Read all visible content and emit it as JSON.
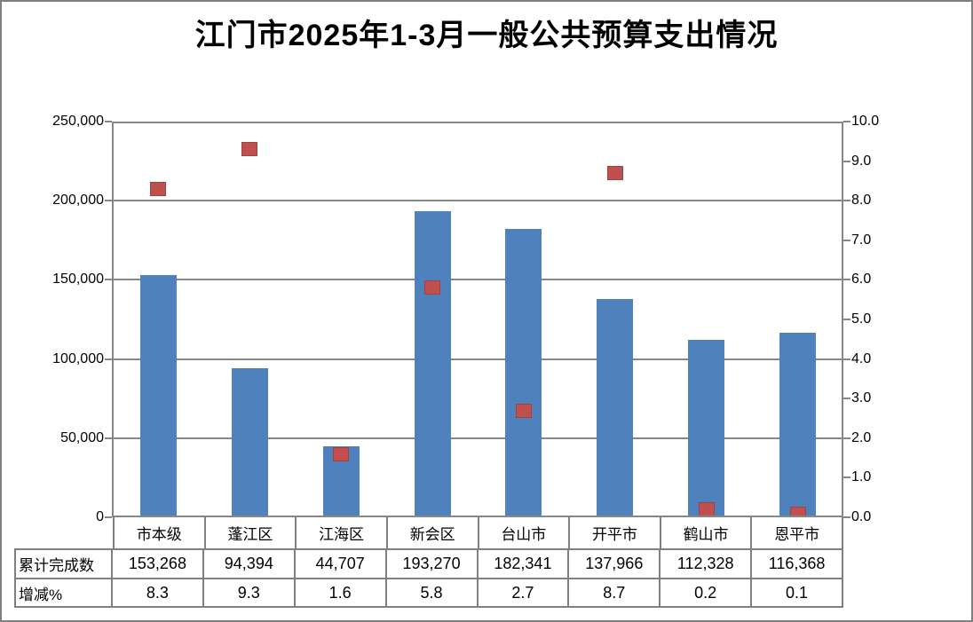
{
  "page": {
    "title": "江门市2025年1-3月一般公共预算支出情况"
  },
  "chart_data": {
    "type": "combo-bar-scatter",
    "title": "江门市2025年1-3月一般公共预算支出情况",
    "categories": [
      "市本级",
      "蓬江区",
      "江海区",
      "新会区",
      "台山市",
      "开平市",
      "鹤山市",
      "恩平市"
    ],
    "series": [
      {
        "name": "累计完成数",
        "type": "bar",
        "axis": "left",
        "values": [
          153268,
          94394,
          44707,
          193270,
          182341,
          137966,
          112328,
          116368
        ],
        "labels": [
          "153,268",
          "94,394",
          "44,707",
          "193,270",
          "182,341",
          "137,966",
          "112,328",
          "116,368"
        ]
      },
      {
        "name": "增减%",
        "type": "scatter",
        "axis": "right",
        "marker": "square",
        "values": [
          8.3,
          9.3,
          1.6,
          5.8,
          2.7,
          8.7,
          0.2,
          0.1
        ],
        "labels": [
          "8.3",
          "9.3",
          "1.6",
          "5.8",
          "2.7",
          "8.7",
          "0.2",
          "0.1"
        ]
      }
    ],
    "left_axis": {
      "min": 0,
      "max": 250000,
      "step": 50000,
      "tick_labels": [
        "250,000",
        "200,000",
        "150,000",
        "100,000",
        "50,000",
        "0"
      ]
    },
    "right_axis": {
      "min": 0.0,
      "max": 10.0,
      "step": 1.0,
      "tick_labels": [
        "10.0",
        "9.0",
        "8.0",
        "7.0",
        "6.0",
        "5.0",
        "4.0",
        "3.0",
        "2.0",
        "1.0",
        "0.0"
      ]
    },
    "grid": "horizontal-major",
    "legend": "none",
    "data_table_shown": true
  },
  "colors": {
    "bar": "#4f81bd",
    "marker": "#c0504d",
    "grid": "#878787",
    "table_border": "#808080",
    "text": "#000000",
    "background": "#ffffff",
    "frame": "#7f7f7f"
  }
}
